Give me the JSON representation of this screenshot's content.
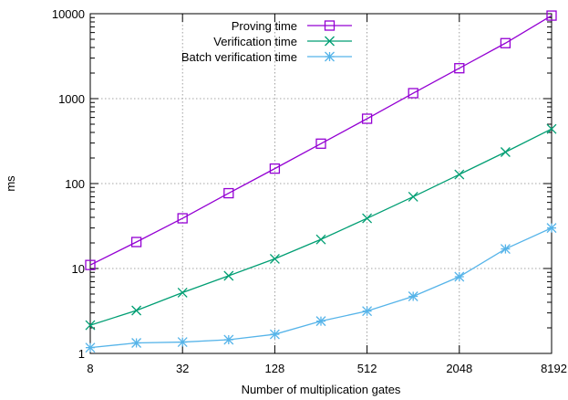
{
  "chart_data": {
    "type": "line",
    "title": "",
    "xlabel": "Number of multiplication gates",
    "ylabel": "ms",
    "x_scale": "log2",
    "y_scale": "log10",
    "xlim": [
      8,
      8192
    ],
    "ylim": [
      1,
      10000
    ],
    "grid": true,
    "legend_position": "top-right",
    "x_ticks": [
      {
        "value": 8,
        "label": "8"
      },
      {
        "value": 32,
        "label": "32"
      },
      {
        "value": 128,
        "label": "128"
      },
      {
        "value": 512,
        "label": "512"
      },
      {
        "value": 2048,
        "label": "2048"
      },
      {
        "value": 8192,
        "label": "8192"
      }
    ],
    "y_ticks": [
      {
        "value": 1,
        "label": "1"
      },
      {
        "value": 10,
        "label": "10"
      },
      {
        "value": 100,
        "label": "100"
      },
      {
        "value": 1000,
        "label": "1000"
      },
      {
        "value": 10000,
        "label": "10000"
      }
    ],
    "x": [
      8,
      16,
      32,
      64,
      128,
      256,
      512,
      1024,
      2048,
      4096,
      8192
    ],
    "series": [
      {
        "name": "Proving time",
        "color": "#9400d3",
        "marker": "square",
        "values": [
          11,
          20.5,
          39,
          77,
          150,
          295,
          580,
          1160,
          2280,
          4500,
          9500
        ]
      },
      {
        "name": "Verification time",
        "color": "#009e73",
        "marker": "x",
        "values": [
          2.15,
          3.2,
          5.2,
          8.2,
          13,
          22,
          39,
          70,
          128,
          235,
          440
        ]
      },
      {
        "name": "Batch verification time",
        "color": "#56b4e9",
        "marker": "star",
        "values": [
          1.17,
          1.33,
          1.36,
          1.45,
          1.68,
          2.4,
          3.15,
          4.7,
          8,
          17,
          30
        ]
      }
    ]
  }
}
